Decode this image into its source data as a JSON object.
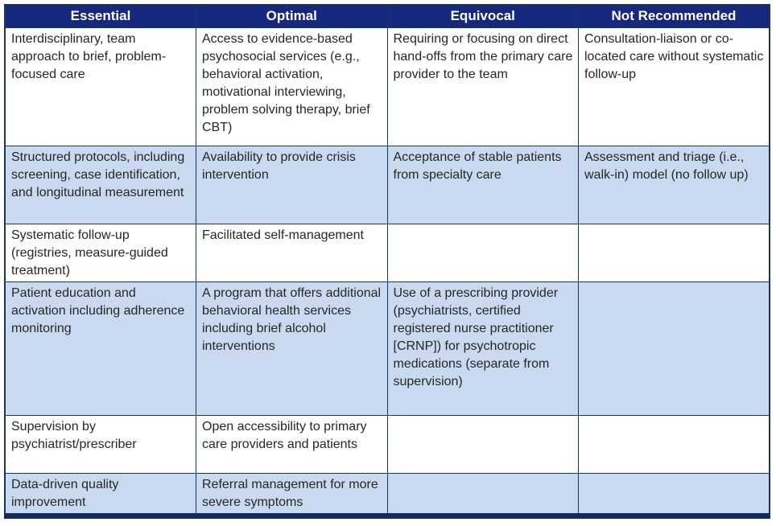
{
  "colors": {
    "header_bg": "#16297E",
    "header_text": "#FFFFFF",
    "alt_row_bg": "#C9D9F0",
    "row_bg": "#FFFFFF",
    "grid_line": "#17365D",
    "bottom_bar": "#132A5E",
    "body_text": "#262626",
    "page_bg": "#FFFFFF"
  },
  "table": {
    "headers": [
      "Essential",
      "Optimal",
      "Equivocal",
      "Not Recommended"
    ],
    "rows": [
      {
        "cells": [
          "Interdisciplinary, team approach to brief, problem-focused care",
          "Access to evidence-based psychosocial services (e.g., behavioral activation, motivational interviewing, problem solving therapy, brief CBT)",
          "Requiring or focusing on direct hand-offs from the primary care provider to the team",
          "Consultation-liaison or co-located care without systematic follow-up"
        ]
      },
      {
        "cells": [
          "Structured protocols, including screening, case identification, and longitudinal measurement",
          "Availability to provide crisis intervention",
          "Acceptance of stable patients from specialty care",
          "Assessment and triage (i.e., walk-in) model (no follow up)"
        ]
      },
      {
        "cells": [
          "Systematic follow-up (registries, measure-guided treatment)",
          "Facilitated self-management",
          "",
          ""
        ]
      },
      {
        "cells": [
          "Patient education and activation including adherence monitoring",
          "A program that offers additional behavioral health services including brief alcohol interventions",
          "Use of a prescribing provider (psychiatrists, certified registered nurse practitioner [CRNP]) for psychotropic medications (separate from supervision)",
          ""
        ]
      },
      {
        "cells": [
          "Supervision by psychiatrist/prescriber",
          "Open accessibility to primary care providers and patients",
          "",
          ""
        ]
      },
      {
        "cells": [
          "Data-driven quality improvement",
          "Referral management for more severe symptoms",
          "",
          ""
        ]
      }
    ]
  }
}
